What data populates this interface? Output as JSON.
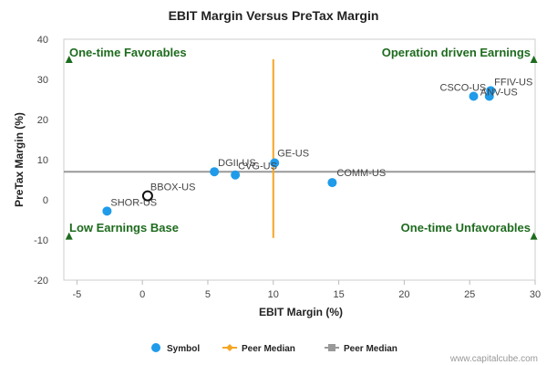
{
  "chart_data": {
    "type": "scatter",
    "title": "EBIT Margin Versus PreTax Margin",
    "xlabel": "EBIT Margin (%)",
    "ylabel": "PreTax Margin (%)",
    "xlim": [
      -6,
      30
    ],
    "ylim": [
      -20,
      40
    ],
    "xticks": [
      -5,
      0,
      5,
      10,
      15,
      20,
      25,
      30
    ],
    "yticks": [
      -20,
      -10,
      0,
      10,
      20,
      30,
      40
    ],
    "peer_median_x": 10,
    "peer_median_y": 7,
    "vline_y_range": [
      -9.5,
      35
    ],
    "points": [
      {
        "label": "FFIV-US",
        "x": 26.6,
        "y": 27.2
      },
      {
        "label": "CSCO-US",
        "x": 25.3,
        "y": 25.8
      },
      {
        "label": "ANV-US",
        "x": 26.5,
        "y": 25.8
      },
      {
        "label": "GE-US",
        "x": 10.1,
        "y": 9.2
      },
      {
        "label": "DGII-US",
        "x": 5.5,
        "y": 7.0
      },
      {
        "label": "CVG-US",
        "x": 7.1,
        "y": 6.2
      },
      {
        "label": "COMM-US",
        "x": 14.5,
        "y": 4.3
      },
      {
        "label": "SHOR-US",
        "x": -2.7,
        "y": -2.8
      }
    ],
    "highlight": {
      "label": "BBOX-US",
      "x": 0.4,
      "y": 1.0
    },
    "quadrants": {
      "top_left": "One-time Favorables",
      "top_right": "Operation driven Earnings",
      "bottom_left": "Low Earnings Base",
      "bottom_right": "One-time Unfavorables"
    },
    "legend": [
      "Symbol",
      "Peer Median",
      "Peer Median"
    ],
    "legend_position": "bottom",
    "colors": {
      "point": "#1f9bea",
      "vline": "#f5a623",
      "hline": "#999999",
      "marker": "#1e6b1e"
    }
  },
  "credit": "www.capitalcube.com"
}
